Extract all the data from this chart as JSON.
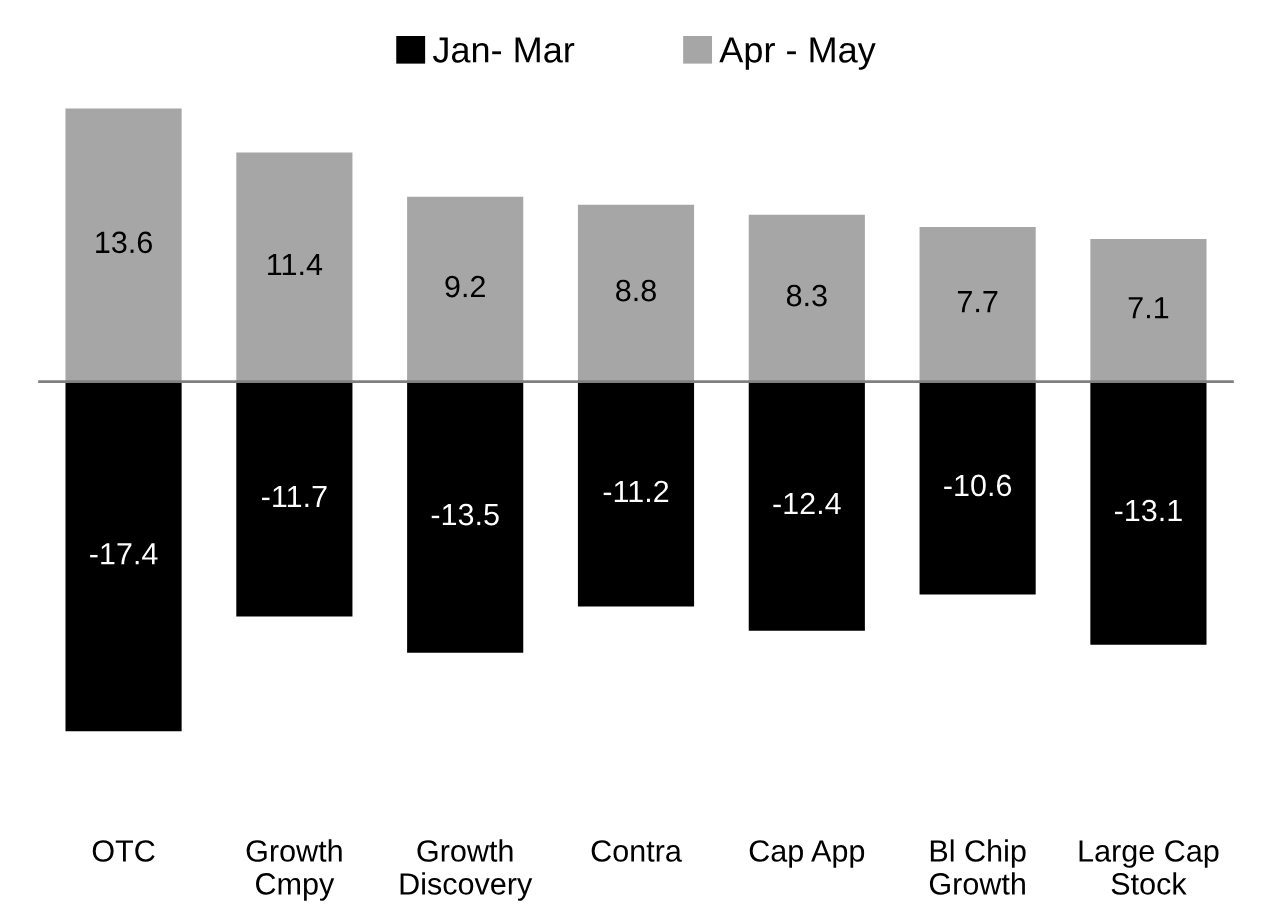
{
  "chart_data": {
    "type": "bar",
    "stacked": true,
    "categories": [
      "OTC",
      "Growth\nCmpy",
      "Growth\nDiscovery",
      "Contra",
      "Cap App",
      "Bl Chip\nGrowth",
      "Large Cap\nStock"
    ],
    "series": [
      {
        "name": "Jan- Mar",
        "color": "#000000",
        "values": [
          -17.4,
          -11.7,
          -13.5,
          -11.2,
          -12.4,
          -10.6,
          -13.1
        ]
      },
      {
        "name": "Apr - May",
        "color": "#a6a6a6",
        "values": [
          13.6,
          11.4,
          9.2,
          8.8,
          8.3,
          7.7,
          7.1
        ]
      }
    ],
    "data_labels": true,
    "legend": "top",
    "grid": false
  }
}
